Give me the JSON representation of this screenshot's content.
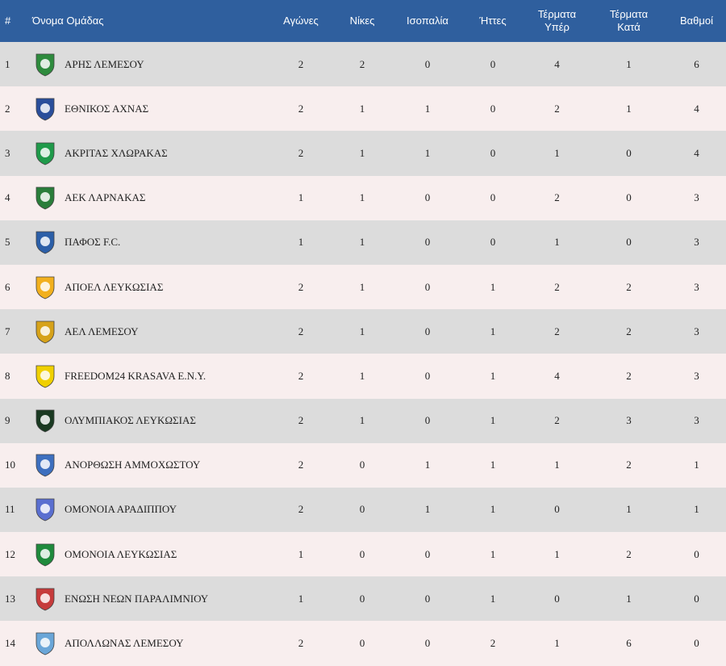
{
  "header": {
    "rank": "#",
    "team": "Όνομα Ομάδας",
    "played": "Αγώνες",
    "wins": "Νίκες",
    "draws": "Ισοπαλία",
    "losses": "Ήττες",
    "gf_line1": "Τέρματα",
    "gf_line2": "Υπέρ",
    "ga_line1": "Τέρματα",
    "ga_line2": "Κατά",
    "points": "Βαθμοί"
  },
  "rows": [
    {
      "rank": "1",
      "team": "ΑΡΗΣ ΛΕΜΕΣΟΥ",
      "played": "2",
      "wins": "2",
      "draws": "0",
      "losses": "0",
      "gf": "4",
      "ga": "1",
      "points": "6",
      "logo": "aris-logo",
      "color": "#2e8b3d"
    },
    {
      "rank": "2",
      "team": "ΕΘΝΙΚΟΣ ΑΧΝΑΣ",
      "played": "2",
      "wins": "1",
      "draws": "1",
      "losses": "0",
      "gf": "2",
      "ga": "1",
      "points": "4",
      "logo": "ethnikos-logo",
      "color": "#2a4e9b"
    },
    {
      "rank": "3",
      "team": "ΑΚΡΙΤΑΣ ΧΛΩΡΑΚΑΣ",
      "played": "2",
      "wins": "1",
      "draws": "1",
      "losses": "0",
      "gf": "1",
      "ga": "0",
      "points": "4",
      "logo": "akritas-logo",
      "color": "#1f9a4a"
    },
    {
      "rank": "4",
      "team": "ΑΕΚ ΛΑΡΝΑΚΑΣ",
      "played": "1",
      "wins": "1",
      "draws": "0",
      "losses": "0",
      "gf": "2",
      "ga": "0",
      "points": "3",
      "logo": "aek-logo",
      "color": "#2a7d3a"
    },
    {
      "rank": "5",
      "team": "ΠΑΦΟΣ F.C.",
      "played": "1",
      "wins": "1",
      "draws": "0",
      "losses": "0",
      "gf": "1",
      "ga": "0",
      "points": "3",
      "logo": "pafos-logo",
      "color": "#2c5fa8"
    },
    {
      "rank": "6",
      "team": "ΑΠΟΕΛ ΛΕΥΚΩΣΙΑΣ",
      "played": "2",
      "wins": "1",
      "draws": "0",
      "losses": "1",
      "gf": "2",
      "ga": "2",
      "points": "3",
      "logo": "apoel-logo",
      "color": "#f2b01e"
    },
    {
      "rank": "7",
      "team": "ΑΕΛ ΛΕΜΕΣΟΥ",
      "played": "2",
      "wins": "1",
      "draws": "0",
      "losses": "1",
      "gf": "2",
      "ga": "2",
      "points": "3",
      "logo": "ael-logo",
      "color": "#d6a21a"
    },
    {
      "rank": "8",
      "team": "FREEDOM24 KRASAVA E.N.Y.",
      "played": "2",
      "wins": "1",
      "draws": "0",
      "losses": "1",
      "gf": "4",
      "ga": "2",
      "points": "3",
      "logo": "krasava-logo",
      "color": "#f0d000"
    },
    {
      "rank": "9",
      "team": "ΟΛΥΜΠΙΑΚΟΣ ΛΕΥΚΩΣΙΑΣ",
      "played": "2",
      "wins": "1",
      "draws": "0",
      "losses": "1",
      "gf": "2",
      "ga": "3",
      "points": "3",
      "logo": "olympiakos-logo",
      "color": "#1a3a22"
    },
    {
      "rank": "10",
      "team": "ΑΝΟΡΘΩΣΗ ΑΜΜΟΧΩΣΤΟΥ",
      "played": "2",
      "wins": "0",
      "draws": "1",
      "losses": "1",
      "gf": "1",
      "ga": "2",
      "points": "1",
      "logo": "anorthosis-logo",
      "color": "#3d6fbf"
    },
    {
      "rank": "11",
      "team": "ΟΜΟΝΟΙΑ ΑΡΑΔΙΠΠΟΥ",
      "played": "2",
      "wins": "0",
      "draws": "1",
      "losses": "1",
      "gf": "0",
      "ga": "1",
      "points": "1",
      "logo": "omonia-aradippou-logo",
      "color": "#5a6fd0"
    },
    {
      "rank": "12",
      "team": "ΟΜΟΝΟΙΑ ΛΕΥΚΩΣΙΑΣ",
      "played": "1",
      "wins": "0",
      "draws": "0",
      "losses": "1",
      "gf": "1",
      "ga": "2",
      "points": "0",
      "logo": "omonia-logo",
      "color": "#1f8a3c"
    },
    {
      "rank": "13",
      "team": "ΕΝΩΣΗ ΝΕΩΝ ΠΑΡΑΛΙΜΝΙΟΥ",
      "played": "1",
      "wins": "0",
      "draws": "0",
      "losses": "1",
      "gf": "0",
      "ga": "1",
      "points": "0",
      "logo": "enp-logo",
      "color": "#c63b3b"
    },
    {
      "rank": "14",
      "team": "ΑΠΟΛΛΩΝΑΣ ΛΕΜΕΣΟΥ",
      "played": "2",
      "wins": "0",
      "draws": "0",
      "losses": "2",
      "gf": "1",
      "ga": "6",
      "points": "0",
      "logo": "apollon-logo",
      "color": "#6aa6d8"
    }
  ]
}
